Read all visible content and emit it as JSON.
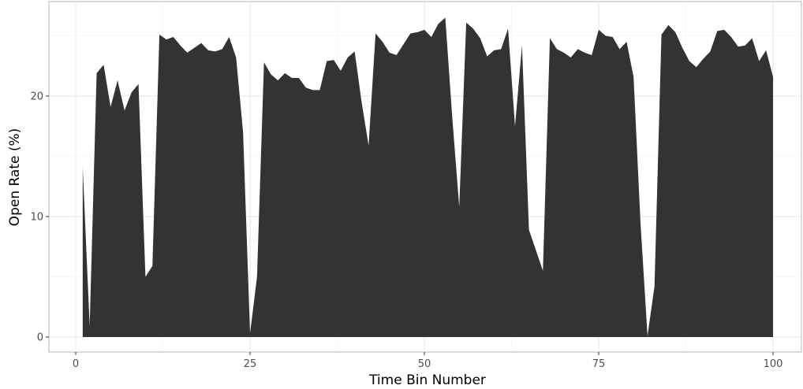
{
  "chart_data": {
    "type": "area",
    "title": "",
    "xlabel": "Time Bin Number",
    "ylabel": "Open Rate (%)",
    "xlim": [
      0,
      100
    ],
    "ylim": [
      0,
      25
    ],
    "x_ticks": [
      0,
      25,
      50,
      75,
      100
    ],
    "y_ticks": [
      0,
      10,
      20
    ],
    "grid": true,
    "fill_color": "#333333",
    "x": [
      1,
      2,
      3,
      4,
      5,
      6,
      7,
      8,
      9,
      10,
      11,
      12,
      13,
      14,
      15,
      16,
      17,
      18,
      19,
      20,
      21,
      22,
      23,
      24,
      25,
      26,
      27,
      28,
      29,
      30,
      31,
      32,
      33,
      34,
      35,
      36,
      37,
      38,
      39,
      40,
      41,
      42,
      43,
      44,
      45,
      46,
      47,
      48,
      49,
      50,
      51,
      52,
      53,
      54,
      55,
      56,
      57,
      58,
      59,
      60,
      61,
      62,
      63,
      64,
      65,
      66,
      67,
      68,
      69,
      70,
      71,
      72,
      73,
      74,
      75,
      76,
      77,
      78,
      79,
      80,
      81,
      82,
      83,
      84,
      85,
      86,
      87,
      88,
      89,
      90,
      91,
      92,
      93,
      94,
      95,
      96,
      97,
      98,
      99,
      100
    ],
    "values": [
      14.1,
      0.9,
      21.9,
      22.6,
      19.1,
      21.3,
      18.8,
      20.3,
      21.0,
      5.0,
      5.9,
      25.1,
      24.7,
      24.9,
      24.2,
      23.6,
      24.0,
      24.4,
      23.8,
      23.7,
      23.9,
      24.9,
      23.2,
      17.0,
      0.3,
      5.0,
      22.8,
      21.8,
      21.3,
      21.9,
      21.5,
      21.5,
      20.7,
      20.5,
      20.5,
      22.9,
      23.0,
      22.1,
      23.2,
      23.7,
      19.5,
      15.9,
      25.2,
      24.5,
      23.6,
      23.4,
      24.3,
      25.2,
      25.3,
      25.5,
      24.9,
      26.0,
      26.5,
      18.2,
      10.8,
      26.1,
      25.6,
      24.8,
      23.3,
      23.8,
      23.9,
      25.6,
      17.5,
      24.2,
      8.9,
      7.2,
      5.5,
      24.8,
      23.9,
      23.6,
      23.2,
      23.9,
      23.6,
      23.4,
      25.5,
      25.0,
      24.9,
      23.9,
      24.5,
      21.6,
      9.4,
      0.1,
      4.2,
      25.1,
      25.9,
      25.3,
      24.0,
      22.9,
      22.4,
      23.1,
      23.7,
      25.4,
      25.5,
      24.9,
      24.1,
      24.2,
      24.8,
      22.9,
      23.8,
      21.6
    ]
  }
}
